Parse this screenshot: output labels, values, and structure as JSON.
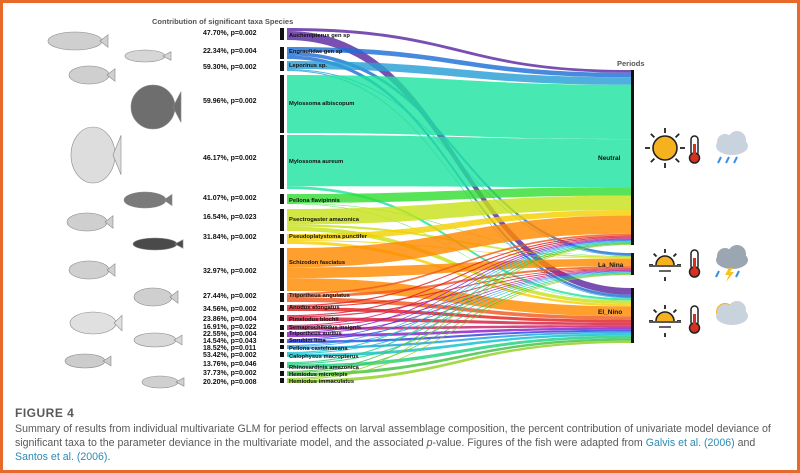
{
  "figure": {
    "contribution_title": "Contribution of significant taxa Species",
    "periods_title": "Periods",
    "rows": [
      {
        "stat": "47.70%, p=0.002",
        "taxon": "Auchenipterus gen sp"
      },
      {
        "stat": "22.34%, p=0.004",
        "taxon": "Engraulidae gen sp"
      },
      {
        "stat": "59.30%, p=0.002",
        "taxon": "Leporinus sp."
      },
      {
        "stat": "59.96%, p=0.002",
        "taxon": "Mylossoma albiscopum"
      },
      {
        "stat": "46.17%, p=0.002",
        "taxon": "Mylossoma aureum"
      },
      {
        "stat": "41.07%, p=0.002",
        "taxon": "Pellona flavipinnis"
      },
      {
        "stat": "16.54%, p=0.023",
        "taxon": "Psectrogaster amazonica"
      },
      {
        "stat": "31.84%, p=0.002",
        "taxon": "Pseudoplatystoma punctifer"
      },
      {
        "stat": "32.97%, p=0.002",
        "taxon": "Schizodon fasciatus"
      },
      {
        "stat": "27.44%, p=0.002",
        "taxon": "Triportheus angulatus"
      },
      {
        "stat": "34.56%, p=0.002",
        "taxon": "Anodus elongatus"
      },
      {
        "stat": "23.86%, p=0.004",
        "taxon": "Pimelodus blochii"
      },
      {
        "stat": "16.91%, p=0.022",
        "taxon": "Semaprochilodus insignis"
      },
      {
        "stat": "22.55%, p=0.004",
        "taxon": "Triportheus auritus"
      },
      {
        "stat": "14.54%, p=0.043",
        "taxon": "Sorubim lima"
      },
      {
        "stat": "18.52%, p=0.011",
        "taxon": "Pellona castelnaeana"
      },
      {
        "stat": "53.42%, p=0.002",
        "taxon": "Calophysus macropterus"
      },
      {
        "stat": "13.76%, p=0.046",
        "taxon": "Rhinosardinia amazonica"
      },
      {
        "stat": "37.73%, p=0.002",
        "taxon": "Hemiodus microlepis"
      },
      {
        "stat": "20.20%, p=0.008",
        "taxon": "Hemiodus immaculatus"
      }
    ],
    "periods": [
      "Neutral",
      "La_Nina",
      "El_Nino"
    ],
    "icons": [
      "sun-icon",
      "thermometer-icon",
      "cloud-rain-icon",
      "sunset-icon",
      "thermometer-icon",
      "storm-cloud-icon",
      "sunrise-icon",
      "thermometer-icon",
      "sun-cloud-icon"
    ]
  },
  "caption": {
    "label": "FIGURE 4",
    "text_1": "Summary of results from individual multivariate GLM for period effects on larval assemblage composition, the percent contribution of univariate model deviance of significant taxa to the parameter deviance in the multivariate model, and the associated ",
    "p_italic": "p",
    "text_2": "-value. Figures of the fish were adapted from ",
    "ref_1": "Galvis et al. (2006)",
    "text_3": " and ",
    "ref_2": "Santos et al. (2006)",
    "text_4": "."
  }
}
